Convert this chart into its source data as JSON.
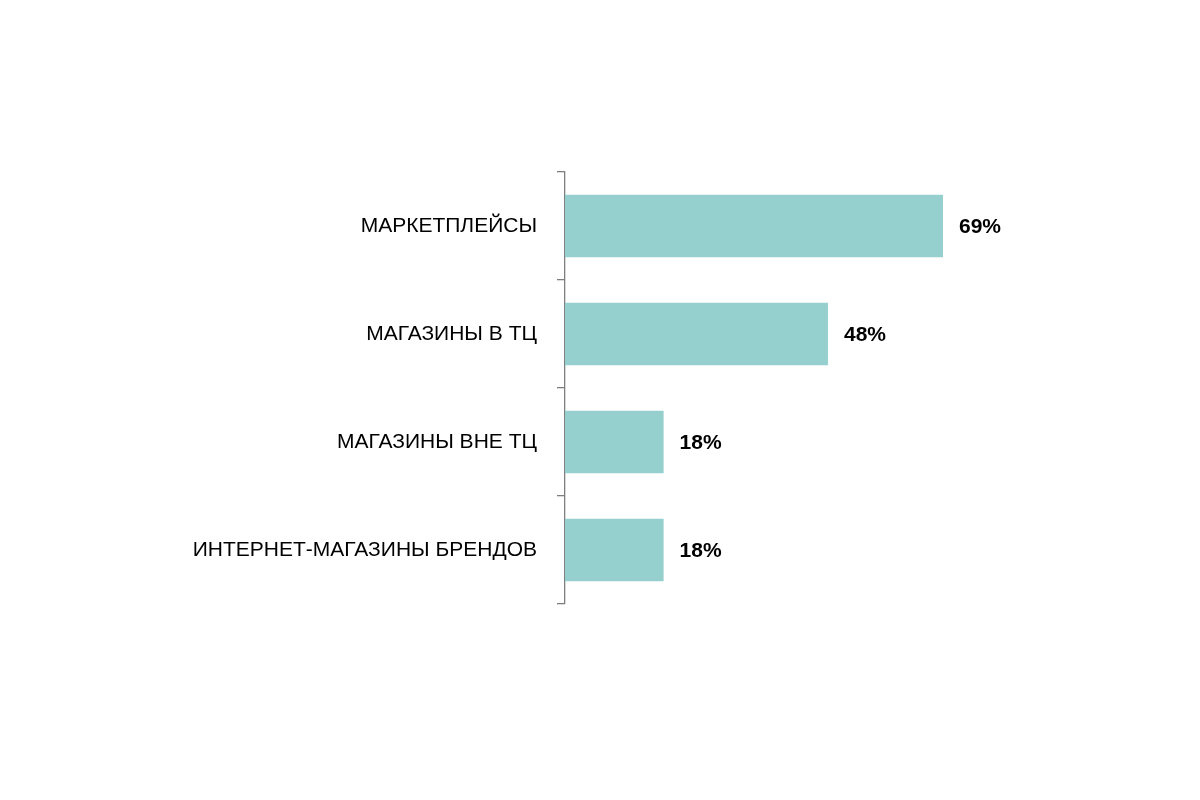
{
  "chart_data": {
    "type": "bar",
    "orientation": "horizontal",
    "categories": [
      "МАРКЕТПЛЕЙСЫ",
      "МАГАЗИНЫ В ТЦ",
      "МАГАЗИНЫ ВНЕ ТЦ",
      "ИНТЕРНЕТ-МАГАЗИНЫ БРЕНДОВ"
    ],
    "values": [
      69,
      48,
      18,
      18
    ],
    "value_labels": [
      "69%",
      "48%",
      "18%",
      "18%"
    ],
    "color": "#96d0ce",
    "legend": false,
    "grid": false,
    "tick_labels": "y"
  }
}
